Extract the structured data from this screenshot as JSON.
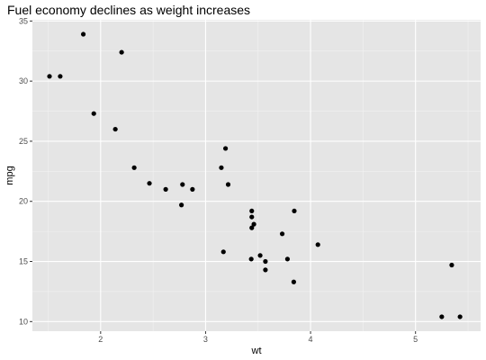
{
  "chart_data": {
    "type": "scatter",
    "title": "Fuel economy declines as weight increases",
    "xlabel": "wt",
    "ylabel": "mpg",
    "xlim": [
      1.35,
      5.62
    ],
    "ylim": [
      9.2,
      35.1
    ],
    "x_ticks": [
      2,
      3,
      4,
      5
    ],
    "x_tick_labels": [
      "2",
      "3",
      "4",
      "5"
    ],
    "x_minor_ticks": [
      1.5,
      2.5,
      3.5,
      4.5,
      5.5
    ],
    "y_ticks": [
      10,
      15,
      20,
      25,
      30,
      35
    ],
    "y_tick_labels": [
      "10",
      "15",
      "20",
      "25",
      "30",
      "35"
    ],
    "y_minor_ticks": [
      12.5,
      17.5,
      22.5,
      27.5,
      32.5
    ],
    "grid": true,
    "legend": "none",
    "colors": {
      "panel_background": "#e5e5e5",
      "grid_major": "#ffffff",
      "grid_minor": "#f2f2f2",
      "point": "#000000",
      "tick": "#333333"
    },
    "points": [
      {
        "x": 2.62,
        "y": 21.0
      },
      {
        "x": 2.875,
        "y": 21.0
      },
      {
        "x": 2.32,
        "y": 22.8
      },
      {
        "x": 3.215,
        "y": 21.4
      },
      {
        "x": 3.44,
        "y": 18.7
      },
      {
        "x": 3.46,
        "y": 18.1
      },
      {
        "x": 3.57,
        "y": 14.3
      },
      {
        "x": 3.19,
        "y": 24.4
      },
      {
        "x": 3.15,
        "y": 22.8
      },
      {
        "x": 3.44,
        "y": 19.2
      },
      {
        "x": 3.44,
        "y": 17.8
      },
      {
        "x": 4.07,
        "y": 16.4
      },
      {
        "x": 3.73,
        "y": 17.3
      },
      {
        "x": 3.78,
        "y": 15.2
      },
      {
        "x": 5.25,
        "y": 10.4
      },
      {
        "x": 5.424,
        "y": 10.4
      },
      {
        "x": 5.345,
        "y": 14.7
      },
      {
        "x": 2.2,
        "y": 32.4
      },
      {
        "x": 1.615,
        "y": 30.4
      },
      {
        "x": 1.835,
        "y": 33.9
      },
      {
        "x": 2.465,
        "y": 21.5
      },
      {
        "x": 3.52,
        "y": 15.5
      },
      {
        "x": 3.435,
        "y": 15.2
      },
      {
        "x": 3.84,
        "y": 13.3
      },
      {
        "x": 3.845,
        "y": 19.2
      },
      {
        "x": 1.935,
        "y": 27.3
      },
      {
        "x": 2.14,
        "y": 26.0
      },
      {
        "x": 1.513,
        "y": 30.4
      },
      {
        "x": 3.17,
        "y": 15.8
      },
      {
        "x": 2.77,
        "y": 19.7
      },
      {
        "x": 3.57,
        "y": 15.0
      },
      {
        "x": 2.78,
        "y": 21.4
      }
    ]
  }
}
